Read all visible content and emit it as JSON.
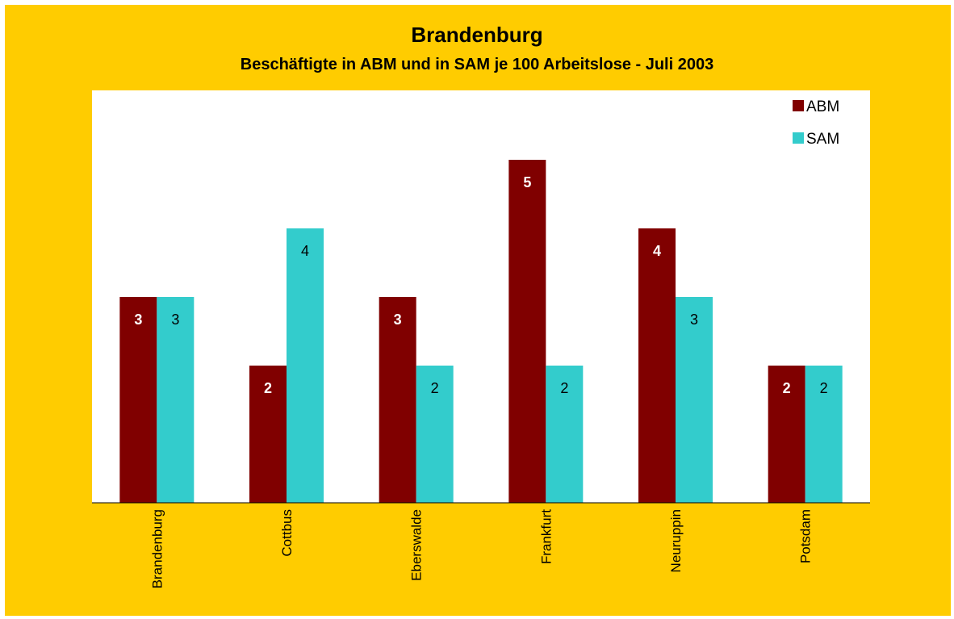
{
  "chart_data": {
    "type": "bar",
    "title": "Brandenburg",
    "subtitle": "Beschäftigte in ABM und in SAM je 100 Arbeitslose  -  Juli 2003",
    "categories": [
      "Brandenburg",
      "Cottbus",
      "Eberswalde",
      "Frankfurt",
      "Neuruppin",
      "Potsdam"
    ],
    "series": [
      {
        "name": "ABM",
        "color": "#800000",
        "values": [
          3,
          2,
          3,
          5,
          4,
          2
        ]
      },
      {
        "name": "SAM",
        "color": "#33cccc",
        "values": [
          3,
          4,
          2,
          2,
          3,
          2
        ]
      }
    ],
    "ylim": [
      0,
      6
    ],
    "grid": false,
    "legend": "top-right",
    "background": "#ffcc00",
    "plot_background": "#ffffff"
  }
}
